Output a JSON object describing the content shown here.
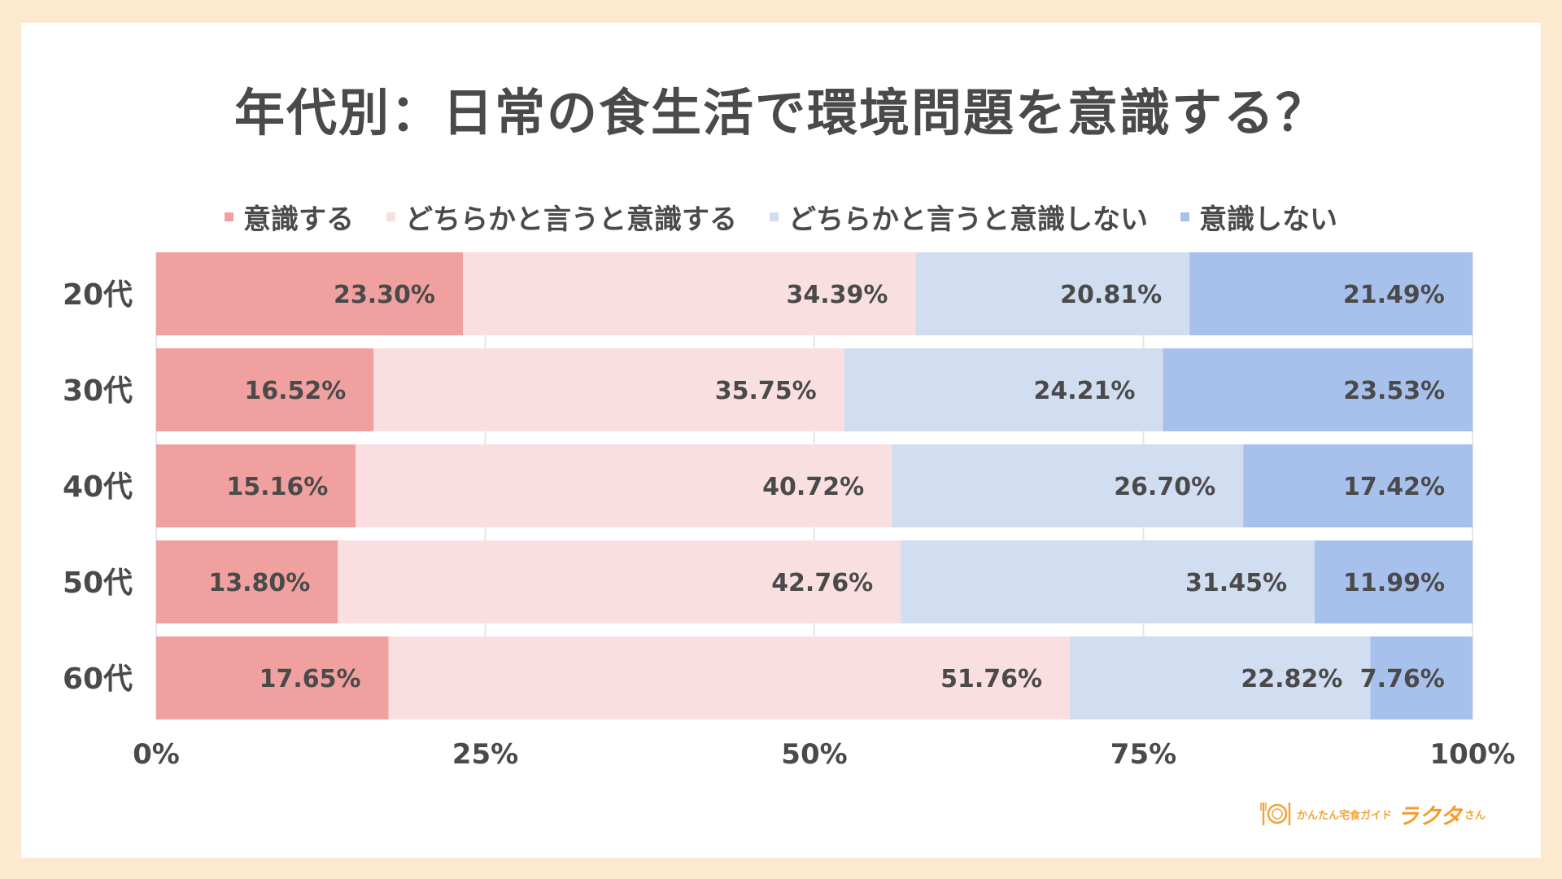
{
  "chart_data": {
    "type": "bar",
    "orientation": "horizontal",
    "stacked": true,
    "title": "年代別：日常の食生活で環境問題を意識する？",
    "categories": [
      "20代",
      "30代",
      "40代",
      "50代",
      "60代"
    ],
    "series": [
      {
        "name": "意識する",
        "color": "#f0a09e",
        "values": [
          23.3,
          16.52,
          15.16,
          13.8,
          17.65
        ],
        "labels": [
          "23.30%",
          "16.52%",
          "15.16%",
          "13.80%",
          "17.65%"
        ]
      },
      {
        "name": "どちらかと言うと意識する",
        "color": "#f9dfe0",
        "values": [
          34.39,
          35.75,
          40.72,
          42.76,
          51.76
        ],
        "labels": [
          "34.39%",
          "35.75%",
          "40.72%",
          "42.76%",
          "51.76%"
        ]
      },
      {
        "name": "どちらかと言うと意識しない",
        "color": "#d1ddf0",
        "values": [
          20.81,
          24.21,
          26.7,
          31.45,
          22.82
        ],
        "labels": [
          "20.81%",
          "24.21%",
          "26.70%",
          "31.45%",
          "22.82%"
        ]
      },
      {
        "name": "意識しない",
        "color": "#a8c1ec",
        "values": [
          21.49,
          23.53,
          17.42,
          11.99,
          7.76
        ],
        "labels": [
          "21.49%",
          "23.53%",
          "17.42%",
          "11.99%",
          "7.76%"
        ]
      }
    ],
    "xlim": [
      0,
      100
    ],
    "xticks": [
      0,
      25,
      50,
      75,
      100
    ],
    "xtick_labels": [
      "0%",
      "25%",
      "50%",
      "75%",
      "100%"
    ],
    "legend_position": "top-center",
    "grid": true
  },
  "logo": {
    "sub": "かんたん宅食ガイド",
    "main": "ラクタ",
    "san": "さん"
  },
  "colors": {
    "background": "#fde9cf",
    "card": "#ffffff",
    "text": "#4a4a4a",
    "grid": "#e6e6e6",
    "logo": "#f0a43a"
  }
}
